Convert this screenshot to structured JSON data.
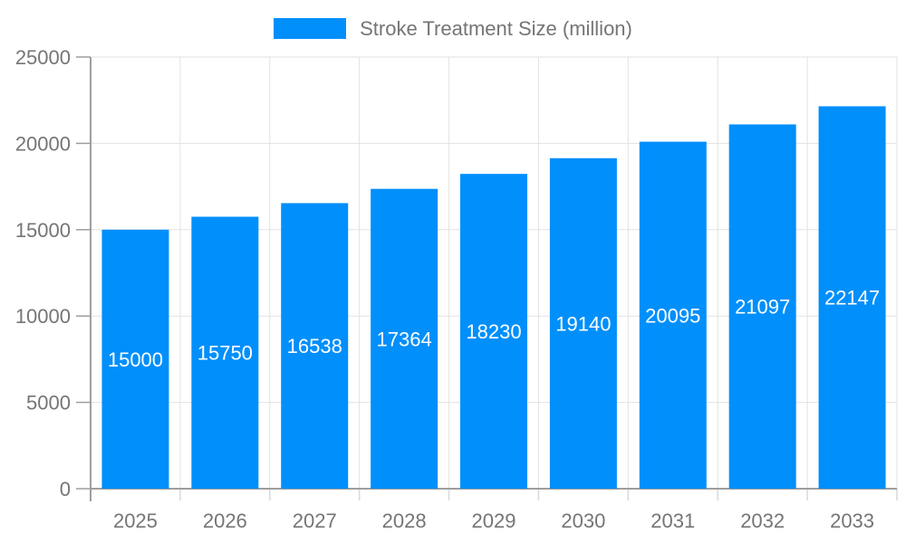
{
  "chart_data": {
    "type": "bar",
    "title": "Stroke Treatment Size (million)",
    "categories": [
      "2025",
      "2026",
      "2027",
      "2028",
      "2029",
      "2030",
      "2031",
      "2032",
      "2033"
    ],
    "series": [
      {
        "name": "Stroke Treatment Size (million)",
        "values": [
          15000,
          15750,
          16538,
          17364,
          18230,
          19140,
          20095,
          21097,
          22147
        ]
      }
    ],
    "xlabel": "",
    "ylabel": "",
    "ylim": [
      0,
      25000
    ],
    "yticks": [
      0,
      5000,
      10000,
      15000,
      20000,
      25000
    ],
    "grid": "on",
    "legend_position": "top-center",
    "value_label_position": "inside-center",
    "colors": {
      "bar": "#008FFB",
      "grid_line": "#E2E2E2",
      "axis_line": "#9E9E9E",
      "minor_tick": "#D9D9D9",
      "tick_label": "#757575",
      "value_label": "#FFFFFF",
      "background": "#FFFFFF"
    }
  }
}
